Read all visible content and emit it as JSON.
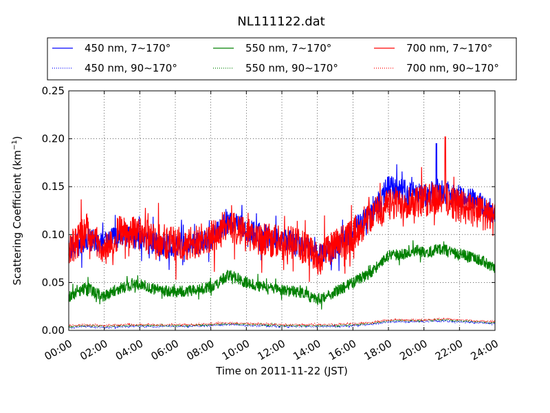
{
  "chart_data": {
    "type": "line",
    "title": "NL111122.dat",
    "xlabel": "Time on 2011-11-22 (JST)",
    "ylabel": "Scattering Coefficient (km",
    "ylabel_sup": "−1",
    "ylabel_close": ")",
    "xlim": [
      0,
      24
    ],
    "ylim": [
      0,
      0.25
    ],
    "x_tick_labels": [
      "00:00",
      "02:00",
      "04:00",
      "06:00",
      "08:00",
      "10:00",
      "12:00",
      "14:00",
      "16:00",
      "18:00",
      "20:00",
      "22:00",
      "24:00"
    ],
    "y_tick_labels": [
      "0.00",
      "0.05",
      "0.10",
      "0.15",
      "0.20",
      "0.25"
    ],
    "grid": true,
    "legend_position": "top",
    "x_hours": [
      0,
      1,
      2,
      3,
      4,
      5,
      6,
      7,
      8,
      9,
      10,
      11,
      12,
      13,
      14,
      15,
      16,
      17,
      18,
      19,
      20,
      21,
      22,
      23,
      24
    ],
    "series": [
      {
        "name": "450 nm, 7∼170°",
        "color": "#0000ff",
        "style": "solid",
        "values": [
          0.085,
          0.095,
          0.092,
          0.1,
          0.095,
          0.09,
          0.088,
          0.09,
          0.095,
          0.115,
          0.105,
          0.098,
          0.095,
          0.09,
          0.08,
          0.085,
          0.105,
          0.12,
          0.15,
          0.145,
          0.14,
          0.145,
          0.14,
          0.135,
          0.12
        ]
      },
      {
        "name": "550 nm, 7∼170°",
        "color": "#008000",
        "style": "solid",
        "values": [
          0.035,
          0.045,
          0.035,
          0.045,
          0.048,
          0.042,
          0.04,
          0.042,
          0.045,
          0.058,
          0.05,
          0.045,
          0.042,
          0.04,
          0.032,
          0.04,
          0.05,
          0.06,
          0.078,
          0.08,
          0.082,
          0.085,
          0.08,
          0.075,
          0.065
        ]
      },
      {
        "name": "700 nm, 7∼170°",
        "color": "#ff0000",
        "style": "solid",
        "values": [
          0.08,
          0.105,
          0.085,
          0.105,
          0.1,
          0.095,
          0.09,
          0.092,
          0.098,
          0.11,
          0.1,
          0.095,
          0.092,
          0.09,
          0.075,
          0.088,
          0.1,
          0.12,
          0.13,
          0.135,
          0.135,
          0.14,
          0.13,
          0.125,
          0.115
        ]
      },
      {
        "name": "450 nm, 90∼170°",
        "color": "#0000ff",
        "style": "dotted",
        "values": [
          0.003,
          0.004,
          0.003,
          0.004,
          0.004,
          0.004,
          0.004,
          0.004,
          0.005,
          0.006,
          0.005,
          0.005,
          0.004,
          0.004,
          0.004,
          0.004,
          0.005,
          0.006,
          0.009,
          0.009,
          0.009,
          0.01,
          0.009,
          0.008,
          0.007
        ]
      },
      {
        "name": "550 nm, 90∼170°",
        "color": "#008000",
        "style": "dotted",
        "values": [
          0.004,
          0.005,
          0.004,
          0.005,
          0.005,
          0.005,
          0.005,
          0.005,
          0.006,
          0.007,
          0.006,
          0.006,
          0.005,
          0.005,
          0.005,
          0.005,
          0.006,
          0.007,
          0.01,
          0.01,
          0.01,
          0.011,
          0.01,
          0.009,
          0.008
        ]
      },
      {
        "name": "700 nm, 90∼170°",
        "color": "#ff0000",
        "style": "dotted",
        "values": [
          0.005,
          0.006,
          0.005,
          0.006,
          0.006,
          0.006,
          0.006,
          0.006,
          0.007,
          0.008,
          0.007,
          0.007,
          0.006,
          0.006,
          0.006,
          0.006,
          0.007,
          0.008,
          0.011,
          0.011,
          0.011,
          0.012,
          0.011,
          0.01,
          0.009
        ]
      }
    ],
    "noise_amplitude": [
      0.012,
      0.006,
      0.018,
      0.0008,
      0.0008,
      0.0008
    ],
    "notable_peaks": [
      {
        "series": "700 nm, 7∼170°",
        "x": 21.2,
        "y": 0.202
      },
      {
        "series": "450 nm, 7∼170°",
        "x": 20.7,
        "y": 0.195
      }
    ]
  }
}
